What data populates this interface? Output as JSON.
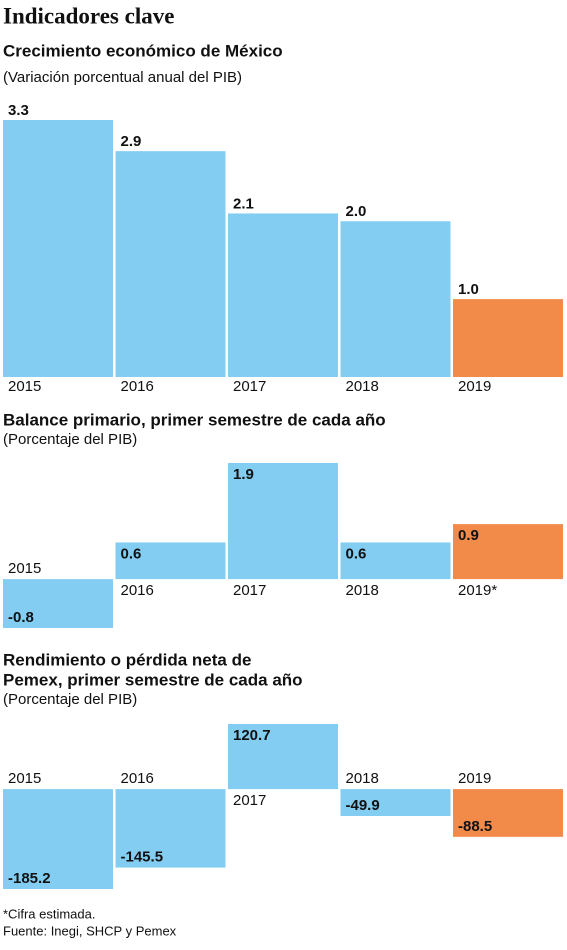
{
  "title": "Indicadores clave",
  "chart_data": [
    {
      "type": "bar",
      "title": [
        "Crecimiento económico de México"
      ],
      "subtitle": "(Variación porcentual anual del PIB)",
      "categories": [
        "2015",
        "2016",
        "2017",
        "2018",
        "2019"
      ],
      "values": [
        3.3,
        2.9,
        2.1,
        2.0,
        1.0
      ],
      "value_labels": [
        "3.3",
        "2.9",
        "2.1",
        "2.0",
        "1.0"
      ],
      "colors": [
        "#84cdf2",
        "#84cdf2",
        "#84cdf2",
        "#84cdf2",
        "#f28b49"
      ]
    },
    {
      "type": "bar",
      "title": [
        "Balance primario, primer semestre de cada año"
      ],
      "subtitle": "(Porcentaje del PIB)",
      "categories": [
        "2015",
        "2016",
        "2017",
        "2018",
        "2019*"
      ],
      "values": [
        -0.8,
        0.6,
        1.9,
        0.6,
        0.9
      ],
      "colors": [
        "#84cdf2",
        "#84cdf2",
        "#84cdf2",
        "#84cdf2",
        "#f28b49"
      ]
    },
    {
      "type": "bar",
      "title": [
        "Rendimiento o pérdida neta de",
        "Pemex, primer semestre de cada año"
      ],
      "subtitle": "(Porcentaje del PIB)",
      "categories": [
        "2015",
        "2016",
        "2017",
        "2018",
        "2019"
      ],
      "values": [
        -185.2,
        -145.5,
        120.7,
        -49.9,
        -88.5
      ],
      "colors": [
        "#84cdf2",
        "#84cdf2",
        "#84cdf2",
        "#84cdf2",
        "#f28b49"
      ]
    }
  ],
  "footnotes": [
    "*Cifra estimada.",
    "Fuente: Inegi, SHCP y Pemex"
  ]
}
